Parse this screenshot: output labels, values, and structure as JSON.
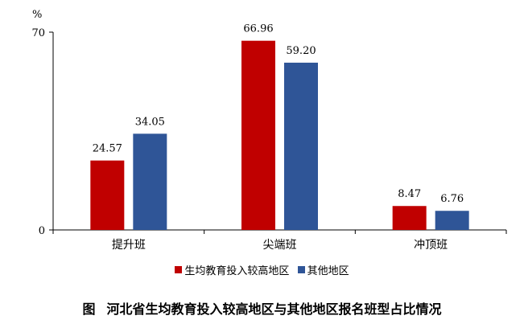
{
  "chart_data": {
    "type": "bar",
    "unit": "%",
    "categories": [
      "提升班",
      "尖端班",
      "冲顶班"
    ],
    "series": [
      {
        "name": "生均教育投入较高地区",
        "color": "#c00000",
        "values": [
          24.57,
          66.96,
          8.47
        ]
      },
      {
        "name": "其他地区",
        "color": "#2f5597",
        "values": [
          34.05,
          59.2,
          6.76
        ]
      }
    ],
    "value_labels": [
      [
        "24.57",
        "66.96",
        "8.47"
      ],
      [
        "34.05",
        "59.20",
        "6.76"
      ]
    ],
    "yticks": [
      "0",
      "70"
    ],
    "ylim": [
      0,
      70
    ],
    "legend_position": "bottom",
    "grid": false
  },
  "caption": {
    "prefix": "图",
    "title": "河北省生均教育投入较高地区与其他地区报名班型占比情况"
  }
}
